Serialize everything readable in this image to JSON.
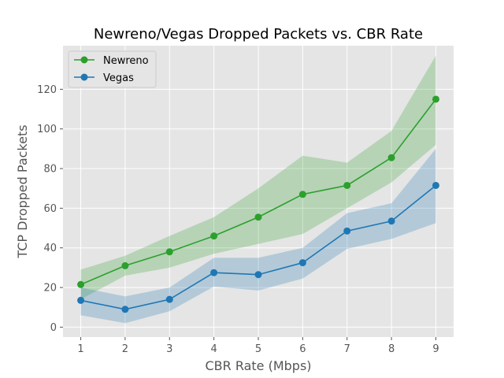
{
  "chart_data": {
    "type": "line",
    "title": "Newreno/Vegas Dropped Packets vs. CBR Rate",
    "xlabel": "CBR Rate (Mbps)",
    "ylabel": "TCP Dropped Packets",
    "x": [
      1,
      2,
      3,
      4,
      5,
      6,
      7,
      8,
      9
    ],
    "xlim": [
      0.6,
      9.4
    ],
    "ylim": [
      -5,
      142
    ],
    "xticks": [
      1,
      2,
      3,
      4,
      5,
      6,
      7,
      8,
      9
    ],
    "yticks": [
      0,
      20,
      40,
      60,
      80,
      100,
      120
    ],
    "grid": true,
    "legend": "top-left",
    "series": [
      {
        "name": "Newreno",
        "color": "#2ca02c",
        "values": [
          21.5,
          31,
          38,
          46,
          55.5,
          67,
          71.5,
          85.5,
          115
        ],
        "lower": [
          14,
          26,
          30,
          37,
          42,
          47,
          60,
          73,
          92
        ],
        "upper": [
          29,
          36,
          46,
          55.5,
          70,
          86.5,
          83,
          99,
          137
        ]
      },
      {
        "name": "Vegas",
        "color": "#1f77b4",
        "values": [
          13.5,
          9,
          14,
          27.5,
          26.5,
          32.5,
          48.5,
          53.5,
          71.5
        ],
        "lower": [
          6,
          2,
          8,
          20.5,
          18.5,
          24.5,
          39.5,
          44.5,
          52.5
        ],
        "upper": [
          20,
          15.5,
          20,
          35,
          35,
          40,
          57.5,
          62.5,
          90
        ]
      }
    ]
  }
}
